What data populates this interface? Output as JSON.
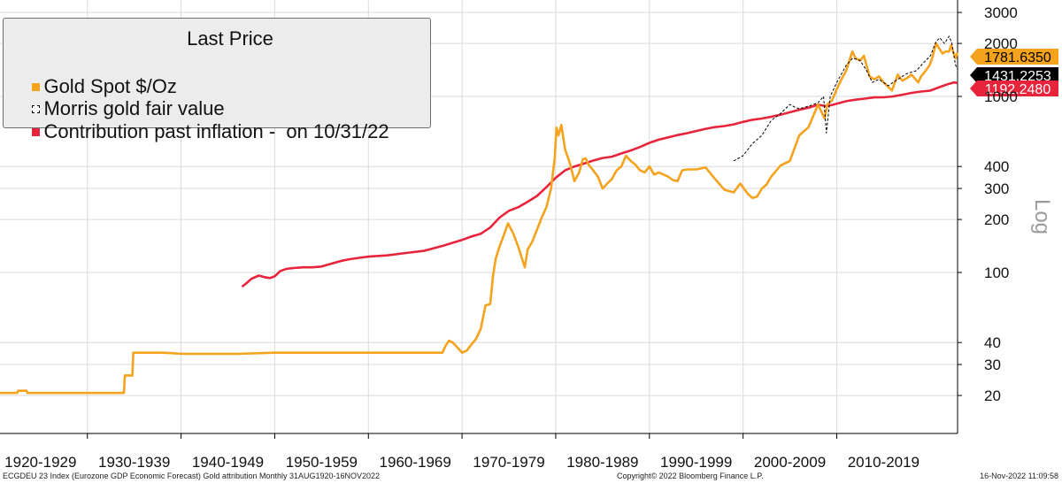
{
  "chart_data": {
    "type": "line",
    "yscale": "log",
    "ylabel": "Log",
    "ylim": [
      14,
      3000
    ],
    "y_ticks": [
      20,
      30,
      40,
      100,
      200,
      300,
      400,
      1000,
      2000,
      3000
    ],
    "xlim": [
      1920.67,
      2022.9
    ],
    "x_tick_labels": [
      {
        "label": "1920-1929",
        "start": 1920,
        "end": 1930
      },
      {
        "label": "1930-1939",
        "start": 1930,
        "end": 1940
      },
      {
        "label": "1940-1949",
        "start": 1940,
        "end": 1950
      },
      {
        "label": "1950-1959",
        "start": 1950,
        "end": 1960
      },
      {
        "label": "1960-1969",
        "start": 1960,
        "end": 1970
      },
      {
        "label": "1970-1979",
        "start": 1970,
        "end": 1980
      },
      {
        "label": "1980-1989",
        "start": 1980,
        "end": 1990
      },
      {
        "label": "1990-1999",
        "start": 1990,
        "end": 2000
      },
      {
        "label": "2000-2009",
        "start": 2000,
        "end": 2010
      },
      {
        "label": "2010-2019",
        "start": 2010,
        "end": 2020
      }
    ],
    "legend": {
      "title": "Last Price",
      "entries": [
        "Gold Spot $/Oz",
        "Morris gold fair value",
        "Contribution past inflation -  on 10/31/22"
      ],
      "placement": "top-left"
    },
    "series": [
      {
        "name": "Gold Spot $/Oz",
        "color": "#f5a21c",
        "last_value_label": "1781.6350",
        "points": [
          [
            1920.67,
            20.67
          ],
          [
            1922.5,
            20.67
          ],
          [
            1922.6,
            21.3
          ],
          [
            1923.5,
            21.3
          ],
          [
            1923.6,
            20.67
          ],
          [
            1933.9,
            20.67
          ],
          [
            1934.0,
            26
          ],
          [
            1934.8,
            26
          ],
          [
            1934.9,
            35
          ],
          [
            1938.0,
            35
          ],
          [
            1939.0,
            34.8
          ],
          [
            1940.0,
            34.5
          ],
          [
            1946.0,
            34.5
          ],
          [
            1950.0,
            35
          ],
          [
            1960.0,
            35
          ],
          [
            1967.9,
            35
          ],
          [
            1968.2,
            38
          ],
          [
            1968.6,
            41
          ],
          [
            1969.0,
            40
          ],
          [
            1969.6,
            37
          ],
          [
            1970.0,
            35
          ],
          [
            1970.5,
            36
          ],
          [
            1971.0,
            39
          ],
          [
            1971.5,
            42
          ],
          [
            1972.0,
            48
          ],
          [
            1972.5,
            65
          ],
          [
            1973.0,
            66
          ],
          [
            1973.3,
            95
          ],
          [
            1973.6,
            120
          ],
          [
            1974.0,
            140
          ],
          [
            1974.5,
            165
          ],
          [
            1974.9,
            190
          ],
          [
            1975.5,
            165
          ],
          [
            1976.0,
            140
          ],
          [
            1976.7,
            107
          ],
          [
            1977.0,
            135
          ],
          [
            1977.5,
            150
          ],
          [
            1978.0,
            175
          ],
          [
            1978.5,
            205
          ],
          [
            1979.0,
            235
          ],
          [
            1979.5,
            300
          ],
          [
            1979.9,
            450
          ],
          [
            1980.08,
            665
          ],
          [
            1980.3,
            600
          ],
          [
            1980.6,
            690
          ],
          [
            1981.0,
            500
          ],
          [
            1981.5,
            420
          ],
          [
            1982.0,
            330
          ],
          [
            1982.5,
            370
          ],
          [
            1982.9,
            440
          ],
          [
            1983.2,
            445
          ],
          [
            1983.5,
            410
          ],
          [
            1984.0,
            380
          ],
          [
            1984.5,
            350
          ],
          [
            1985.0,
            300
          ],
          [
            1985.5,
            320
          ],
          [
            1986.0,
            340
          ],
          [
            1986.5,
            380
          ],
          [
            1987.0,
            400
          ],
          [
            1987.5,
            460
          ],
          [
            1988.0,
            430
          ],
          [
            1988.5,
            410
          ],
          [
            1989.0,
            380
          ],
          [
            1989.5,
            370
          ],
          [
            1990.0,
            400
          ],
          [
            1990.5,
            360
          ],
          [
            1991.0,
            370
          ],
          [
            1991.5,
            360
          ],
          [
            1992.0,
            350
          ],
          [
            1992.5,
            335
          ],
          [
            1993.0,
            330
          ],
          [
            1993.5,
            380
          ],
          [
            1994.0,
            385
          ],
          [
            1995.0,
            385
          ],
          [
            1996.0,
            395
          ],
          [
            1997.0,
            340
          ],
          [
            1998.0,
            295
          ],
          [
            1999.0,
            285
          ],
          [
            1999.7,
            320
          ],
          [
            2000.5,
            280
          ],
          [
            2001.0,
            265
          ],
          [
            2001.5,
            270
          ],
          [
            2002.0,
            300
          ],
          [
            2002.5,
            315
          ],
          [
            2003.0,
            350
          ],
          [
            2004.0,
            405
          ],
          [
            2005.0,
            430
          ],
          [
            2006.0,
            600
          ],
          [
            2007.0,
            670
          ],
          [
            2008.0,
            900
          ],
          [
            2008.7,
            750
          ],
          [
            2009.0,
            900
          ],
          [
            2009.5,
            950
          ],
          [
            2010.0,
            1100
          ],
          [
            2010.5,
            1250
          ],
          [
            2011.0,
            1400
          ],
          [
            2011.67,
            1800
          ],
          [
            2012.0,
            1650
          ],
          [
            2012.5,
            1600
          ],
          [
            2012.9,
            1700
          ],
          [
            2013.5,
            1300
          ],
          [
            2014.0,
            1250
          ],
          [
            2014.5,
            1300
          ],
          [
            2015.0,
            1200
          ],
          [
            2015.9,
            1080
          ],
          [
            2016.5,
            1330
          ],
          [
            2017.0,
            1230
          ],
          [
            2017.5,
            1270
          ],
          [
            2018.0,
            1330
          ],
          [
            2018.7,
            1200
          ],
          [
            2019.0,
            1300
          ],
          [
            2019.5,
            1400
          ],
          [
            2019.9,
            1500
          ],
          [
            2020.2,
            1650
          ],
          [
            2020.6,
            2000
          ],
          [
            2021.0,
            1850
          ],
          [
            2021.3,
            1750
          ],
          [
            2021.6,
            1800
          ],
          [
            2022.0,
            1800
          ],
          [
            2022.2,
            1950
          ],
          [
            2022.5,
            1750
          ],
          [
            2022.7,
            1650
          ],
          [
            2022.9,
            1781.635
          ]
        ]
      },
      {
        "name": "Morris gold fair value",
        "color": "#000000",
        "dashed": true,
        "last_value_label": "1431.2253",
        "points": [
          [
            1999.0,
            430
          ],
          [
            2000.0,
            460
          ],
          [
            2001.0,
            540
          ],
          [
            2002.0,
            600
          ],
          [
            2003.0,
            730
          ],
          [
            2004.0,
            800
          ],
          [
            2005.0,
            900
          ],
          [
            2005.5,
            870
          ],
          [
            2006.0,
            850
          ],
          [
            2007.0,
            880
          ],
          [
            2008.0,
            920
          ],
          [
            2008.6,
            1000
          ],
          [
            2008.9,
            620
          ],
          [
            2009.3,
            1000
          ],
          [
            2010.0,
            1200
          ],
          [
            2011.0,
            1500
          ],
          [
            2011.7,
            1650
          ],
          [
            2012.5,
            1600
          ],
          [
            2013.2,
            1400
          ],
          [
            2013.8,
            1200
          ],
          [
            2014.5,
            1250
          ],
          [
            2015.5,
            1150
          ],
          [
            2016.5,
            1250
          ],
          [
            2017.5,
            1350
          ],
          [
            2018.5,
            1400
          ],
          [
            2019.0,
            1500
          ],
          [
            2019.5,
            1600
          ],
          [
            2020.0,
            1700
          ],
          [
            2020.6,
            2050
          ],
          [
            2021.0,
            2150
          ],
          [
            2021.5,
            2000
          ],
          [
            2022.0,
            2200
          ],
          [
            2022.3,
            2000
          ],
          [
            2022.5,
            1700
          ],
          [
            2022.7,
            1500
          ],
          [
            2022.9,
            1431.2253
          ]
        ]
      },
      {
        "name": "Contribution past inflation -  on 10/31/22",
        "color": "#e8243c",
        "last_value_label": "1192.2480",
        "points": [
          [
            1946.5,
            83
          ],
          [
            1947.0,
            87
          ],
          [
            1947.5,
            92
          ],
          [
            1948.3,
            96
          ],
          [
            1948.9,
            94
          ],
          [
            1949.5,
            93
          ],
          [
            1950.0,
            95
          ],
          [
            1950.6,
            102
          ],
          [
            1951.3,
            105
          ],
          [
            1952.0,
            106
          ],
          [
            1953.0,
            107
          ],
          [
            1954.0,
            107
          ],
          [
            1955.0,
            108
          ],
          [
            1956.0,
            112
          ],
          [
            1957.0,
            116
          ],
          [
            1958.0,
            119
          ],
          [
            1959.0,
            121
          ],
          [
            1960.0,
            123
          ],
          [
            1962.0,
            125
          ],
          [
            1964.0,
            129
          ],
          [
            1966.0,
            133
          ],
          [
            1968.0,
            142
          ],
          [
            1970.0,
            153
          ],
          [
            1971.0,
            160
          ],
          [
            1972.0,
            166
          ],
          [
            1973.0,
            180
          ],
          [
            1974.0,
            205
          ],
          [
            1975.0,
            224
          ],
          [
            1976.0,
            235
          ],
          [
            1977.0,
            252
          ],
          [
            1978.0,
            272
          ],
          [
            1979.0,
            305
          ],
          [
            1980.0,
            345
          ],
          [
            1981.0,
            380
          ],
          [
            1982.0,
            400
          ],
          [
            1983.0,
            415
          ],
          [
            1984.0,
            432
          ],
          [
            1985.0,
            447
          ],
          [
            1986.0,
            455
          ],
          [
            1987.0,
            474
          ],
          [
            1988.0,
            493
          ],
          [
            1989.0,
            516
          ],
          [
            1990.0,
            545
          ],
          [
            1991.0,
            568
          ],
          [
            1992.0,
            585
          ],
          [
            1993.0,
            603
          ],
          [
            1994.0,
            618
          ],
          [
            1995.0,
            636
          ],
          [
            1996.0,
            655
          ],
          [
            1997.0,
            669
          ],
          [
            1998.0,
            679
          ],
          [
            1999.0,
            694
          ],
          [
            2000.0,
            717
          ],
          [
            2001.0,
            737
          ],
          [
            2002.0,
            749
          ],
          [
            2003.0,
            766
          ],
          [
            2004.0,
            787
          ],
          [
            2005.0,
            813
          ],
          [
            2006.0,
            840
          ],
          [
            2007.0,
            863
          ],
          [
            2008.0,
            897
          ],
          [
            2008.9,
            880
          ],
          [
            2009.5,
            895
          ],
          [
            2010.0,
            910
          ],
          [
            2011.0,
            939
          ],
          [
            2012.0,
            958
          ],
          [
            2013.0,
            972
          ],
          [
            2014.0,
            987
          ],
          [
            2015.0,
            988
          ],
          [
            2016.0,
            1000
          ],
          [
            2017.0,
            1022
          ],
          [
            2018.0,
            1047
          ],
          [
            2019.0,
            1066
          ],
          [
            2020.0,
            1079
          ],
          [
            2021.0,
            1130
          ],
          [
            2021.8,
            1170
          ],
          [
            2022.5,
            1200
          ],
          [
            2022.9,
            1192.248
          ]
        ]
      }
    ]
  },
  "footer": {
    "left": "ECGDEU 23 Index (Eurozone GDP Economic Forecast) Gold attribution  Monthly 31AUG1920-16NOV2022",
    "center": "Copyright© 2022 Bloomberg Finance L.P.",
    "right": "16-Nov-2022 11:09:58"
  }
}
